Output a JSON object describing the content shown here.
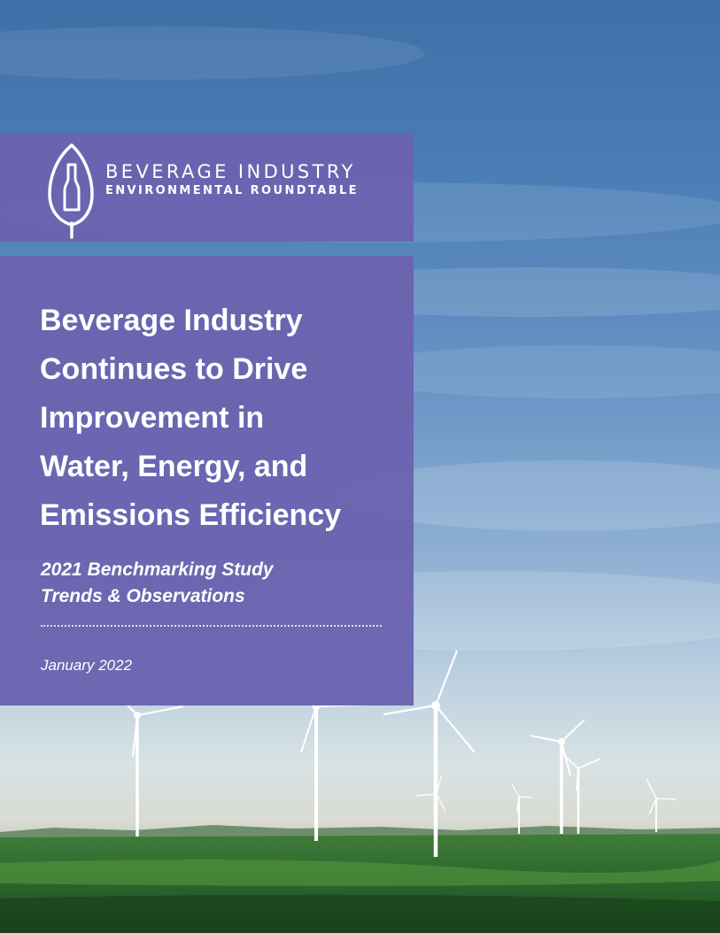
{
  "organization": {
    "name_line1": "BEVERAGE INDUSTRY",
    "name_line2": "ENVIRONMENTAL ROUNDTABLE",
    "logo_icon": "leaf-bottle-icon"
  },
  "report": {
    "title_lines": [
      "Beverage Industry",
      "Continues to Drive",
      "Improvement in",
      "Water, Energy, and",
      "Emissions Efficiency"
    ],
    "subtitle_lines": [
      "2021 Benchmarking Study",
      "Trends & Observations"
    ],
    "date": "January 2022"
  },
  "background": {
    "scene": "wind turbines on green field under blue sky",
    "colors": {
      "sky_top": "#3f6fa6",
      "sky_horizon": "#d8e2e4",
      "grass": "#2f6a2e",
      "panel": "#6b63b0"
    }
  }
}
